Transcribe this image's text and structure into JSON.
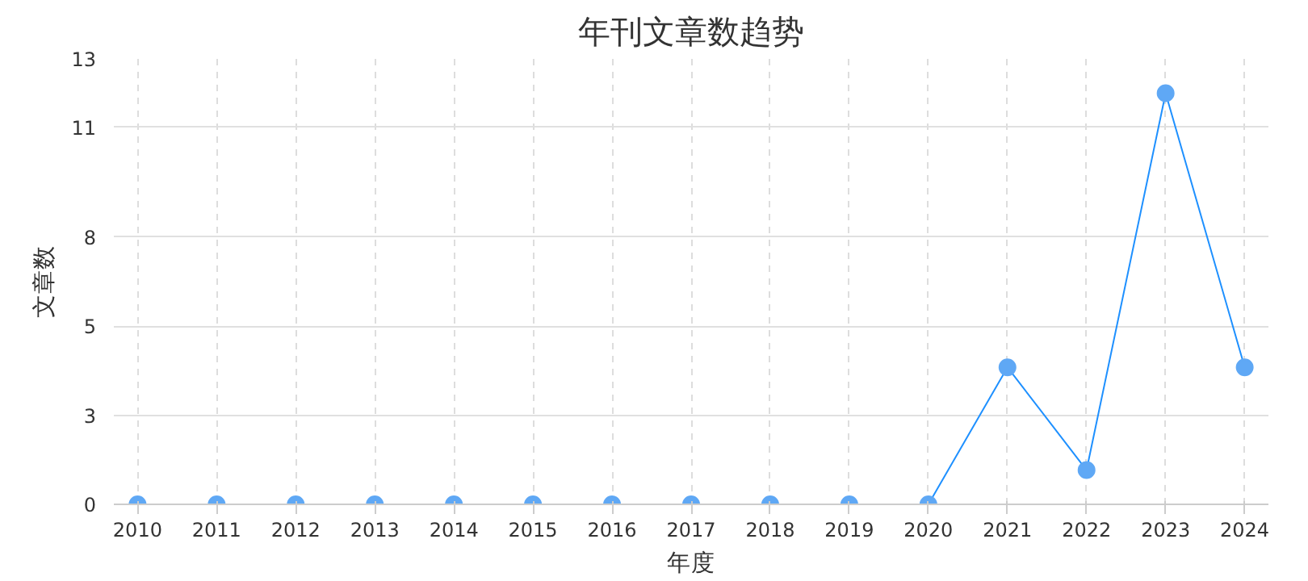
{
  "chart_data": {
    "type": "line",
    "title": "年刊文章数趋势",
    "xlabel": "年度",
    "ylabel": "文章数",
    "categories": [
      "2010",
      "2011",
      "2012",
      "2013",
      "2014",
      "2015",
      "2016",
      "2017",
      "2018",
      "2019",
      "2020",
      "2021",
      "2022",
      "2023",
      "2024"
    ],
    "series": [
      {
        "color": "#1e90ff",
        "values": [
          0,
          0,
          0,
          0,
          0,
          0,
          0,
          0,
          0,
          0,
          0,
          4,
          1,
          12,
          4
        ]
      }
    ],
    "ylim": [
      0,
      13
    ],
    "yticks": [
      0,
      {
        "value": 2.6,
        "label": "3"
      },
      {
        "value": 5.2,
        "label": "5"
      },
      {
        "value": 7.8,
        "label": "8"
      },
      11,
      13
    ],
    "grid": true,
    "marker": "circle",
    "line_style": "solid"
  }
}
